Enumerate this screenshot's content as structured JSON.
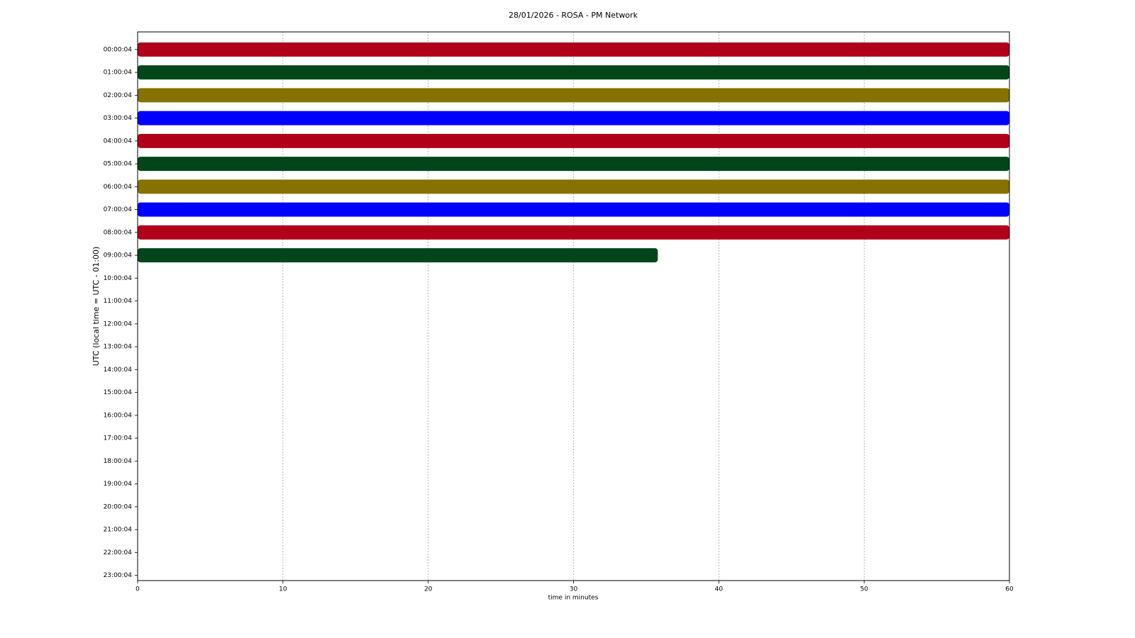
{
  "chart_data": {
    "type": "helicorder",
    "title": "28/01/2026 - ROSA - PM Network",
    "x_label": "time in minutes",
    "y_label": "UTC (local time = UTC - 01:00)",
    "xlim": [
      0,
      60
    ],
    "xticks": [
      0,
      10,
      20,
      30,
      40,
      50,
      60
    ],
    "grid": true,
    "rows": [
      "00:00:04",
      "01:00:04",
      "02:00:04",
      "03:00:04",
      "04:00:04",
      "05:00:04",
      "06:00:04",
      "07:00:04",
      "08:00:04",
      "09:00:04",
      "10:00:04",
      "11:00:04",
      "12:00:04",
      "13:00:04",
      "14:00:04",
      "15:00:04",
      "16:00:04",
      "17:00:04",
      "18:00:04",
      "19:00:04",
      "20:00:04",
      "21:00:04",
      "22:00:04",
      "23:00:04"
    ],
    "traces": [
      {
        "color": "#b0001a",
        "start": 0,
        "end": 60
      },
      {
        "color": "#00461a",
        "start": 0,
        "end": 60
      },
      {
        "color": "#857200",
        "start": 0,
        "end": 60
      },
      {
        "color": "#0000ff",
        "start": 0,
        "end": 60
      },
      {
        "color": "#b0001a",
        "start": 0,
        "end": 60
      },
      {
        "color": "#00461a",
        "start": 0,
        "end": 60
      },
      {
        "color": "#857200",
        "start": 0,
        "end": 60
      },
      {
        "color": "#0000ff",
        "start": 0,
        "end": 60
      },
      {
        "color": "#b0001a",
        "start": 0,
        "end": 60
      },
      {
        "color": "#00461a",
        "start": 0,
        "end": 35.8
      }
    ]
  }
}
